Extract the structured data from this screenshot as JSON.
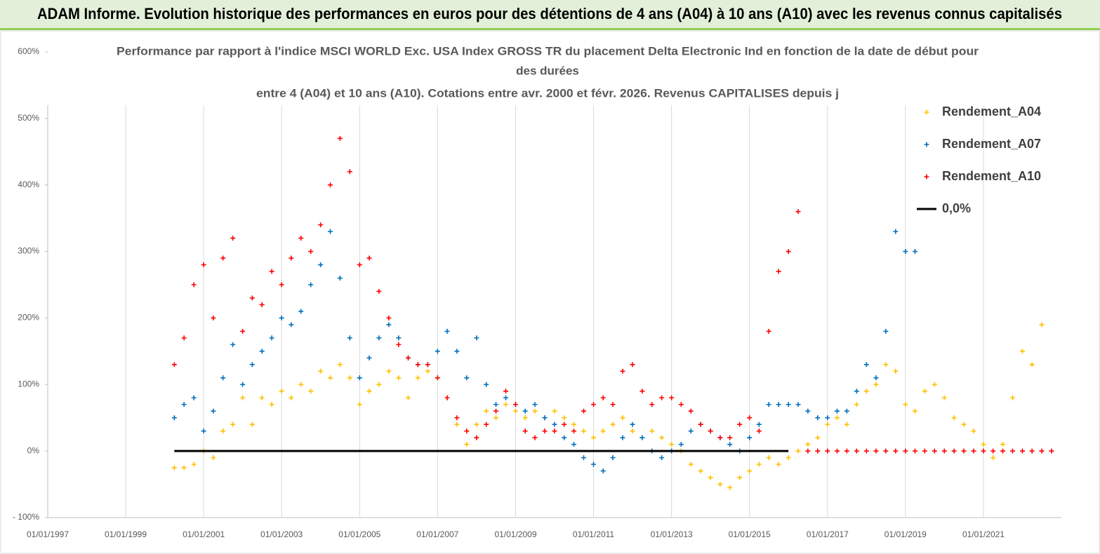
{
  "header": {
    "title": "ADAM Informe. Evolution historique des performances en euros pour des détentions de 4 ans (A04) à 10 ans (A10) avec les revenus connus capitalisés"
  },
  "chart_data": {
    "type": "scatter",
    "title": [
      "Performance par rapport à l'indice MSCI WORLD Exc. USA Index GROSS TR  du placement Delta Electronic Ind  en fonction de la date de début pour",
      "des durées",
      "entre 4 (A04) et 10 ans (A10). Cotations entre avr. 2000 et févr. 2026. Revenus CAPITALISES depuis j"
    ],
    "xlim": [
      "1997-01-01",
      "2023-01-01"
    ],
    "xticks": [
      {
        "value": "1997-01-01",
        "label": "01/01/1997"
      },
      {
        "value": "1999-01-01",
        "label": "01/01/1999"
      },
      {
        "value": "2001-01-01",
        "label": "01/01/2001"
      },
      {
        "value": "2003-01-01",
        "label": "01/01/2003"
      },
      {
        "value": "2005-01-01",
        "label": "01/01/2005"
      },
      {
        "value": "2007-01-01",
        "label": "01/01/2007"
      },
      {
        "value": "2009-01-01",
        "label": "01/01/2009"
      },
      {
        "value": "2011-01-01",
        "label": "01/01/2011"
      },
      {
        "value": "2013-01-01",
        "label": "01/01/2013"
      },
      {
        "value": "2015-01-01",
        "label": "01/01/2015"
      },
      {
        "value": "2017-01-01",
        "label": "01/01/2017"
      },
      {
        "value": "2019-01-01",
        "label": "01/01/2019"
      },
      {
        "value": "2021-01-01",
        "label": "01/01/2021"
      }
    ],
    "ylim": [
      -100,
      600
    ],
    "yticks": [
      {
        "value": -100,
        "label": "- 100%"
      },
      {
        "value": 0,
        "label": "0%"
      },
      {
        "value": 100,
        "label": "100%"
      },
      {
        "value": 200,
        "label": "200%"
      },
      {
        "value": 300,
        "label": "300%"
      },
      {
        "value": 400,
        "label": "400%"
      },
      {
        "value": 500,
        "label": "500%"
      },
      {
        "value": 600,
        "label": "600%"
      }
    ],
    "grid": "x",
    "series": [
      {
        "name": "Rendement_A04",
        "color": "#ffc000",
        "x": [
          "2000-04-01",
          "2000-07-01",
          "2000-10-01",
          "2001-01-01",
          "2001-04-01",
          "2001-07-01",
          "2001-10-01",
          "2002-01-01",
          "2002-04-01",
          "2002-07-01",
          "2002-10-01",
          "2003-01-01",
          "2003-04-01",
          "2003-07-01",
          "2003-10-01",
          "2004-01-01",
          "2004-04-01",
          "2004-07-01",
          "2004-10-01",
          "2005-01-01",
          "2005-04-01",
          "2005-07-01",
          "2005-10-01",
          "2006-01-01",
          "2006-04-01",
          "2006-07-01",
          "2006-10-01",
          "2007-01-01",
          "2007-04-01",
          "2007-07-01",
          "2007-10-01",
          "2008-01-01",
          "2008-04-01",
          "2008-07-01",
          "2008-10-01",
          "2009-01-01",
          "2009-04-01",
          "2009-07-01",
          "2009-10-01",
          "2010-01-01",
          "2010-04-01",
          "2010-07-01",
          "2010-10-01",
          "2011-01-01",
          "2011-04-01",
          "2011-07-01",
          "2011-10-01",
          "2012-01-01",
          "2012-04-01",
          "2012-07-01",
          "2012-10-01",
          "2013-01-01",
          "2013-04-01",
          "2013-07-01",
          "2013-10-01",
          "2014-01-01",
          "2014-04-01",
          "2014-07-01",
          "2014-10-01",
          "2015-01-01",
          "2015-04-01",
          "2015-07-01",
          "2015-10-01",
          "2016-01-01",
          "2016-04-01",
          "2016-07-01",
          "2016-10-01",
          "2017-01-01",
          "2017-04-01",
          "2017-07-01",
          "2017-10-01",
          "2018-01-01",
          "2018-04-01",
          "2018-07-01",
          "2018-10-01",
          "2019-01-01",
          "2019-04-01",
          "2019-07-01",
          "2019-10-01",
          "2020-01-01",
          "2020-04-01",
          "2020-07-01",
          "2020-10-01",
          "2021-01-01",
          "2021-04-01",
          "2021-07-01",
          "2021-10-01",
          "2022-01-01",
          "2022-04-01",
          "2022-07-01"
        ],
        "values": [
          -25,
          -25,
          -20,
          0,
          -10,
          30,
          40,
          80,
          40,
          80,
          70,
          90,
          80,
          100,
          90,
          120,
          110,
          130,
          110,
          70,
          90,
          100,
          120,
          110,
          80,
          110,
          120,
          110,
          80,
          40,
          10,
          40,
          60,
          50,
          70,
          60,
          50,
          60,
          50,
          60,
          50,
          40,
          30,
          20,
          30,
          40,
          50,
          30,
          20,
          30,
          20,
          10,
          0,
          -20,
          -30,
          -40,
          -50,
          -55,
          -40,
          -30,
          -20,
          -10,
          -20,
          -10,
          0,
          10,
          20,
          40,
          50,
          40,
          70,
          90,
          100,
          130,
          120,
          70,
          60,
          90,
          100,
          80,
          50,
          40,
          30,
          10,
          -10,
          10,
          80,
          150,
          130,
          190
        ]
      },
      {
        "name": "Rendement_A07",
        "color": "#0070c0",
        "x": [
          "2000-04-01",
          "2000-07-01",
          "2000-10-01",
          "2001-01-01",
          "2001-04-01",
          "2001-07-01",
          "2001-10-01",
          "2002-01-01",
          "2002-04-01",
          "2002-07-01",
          "2002-10-01",
          "2003-01-01",
          "2003-04-01",
          "2003-07-01",
          "2003-10-01",
          "2004-01-01",
          "2004-04-01",
          "2004-07-01",
          "2004-10-01",
          "2005-01-01",
          "2005-04-01",
          "2005-07-01",
          "2005-10-01",
          "2006-01-01",
          "2006-04-01",
          "2006-07-01",
          "2006-10-01",
          "2007-01-01",
          "2007-04-01",
          "2007-07-01",
          "2007-10-01",
          "2008-01-01",
          "2008-04-01",
          "2008-07-01",
          "2008-10-01",
          "2009-01-01",
          "2009-04-01",
          "2009-07-01",
          "2009-10-01",
          "2010-01-01",
          "2010-04-01",
          "2010-07-01",
          "2010-10-01",
          "2011-01-01",
          "2011-04-01",
          "2011-07-01",
          "2011-10-01",
          "2012-01-01",
          "2012-04-01",
          "2012-07-01",
          "2012-10-01",
          "2013-01-01",
          "2013-04-01",
          "2013-07-01",
          "2013-10-01",
          "2014-01-01",
          "2014-04-01",
          "2014-07-01",
          "2014-10-01",
          "2015-01-01",
          "2015-04-01",
          "2015-07-01",
          "2015-10-01",
          "2016-01-01",
          "2016-04-01",
          "2016-07-01",
          "2016-10-01",
          "2017-01-01",
          "2017-04-01",
          "2017-07-01",
          "2017-10-01",
          "2018-01-01",
          "2018-04-01",
          "2018-07-01",
          "2018-10-01",
          "2019-01-01",
          "2019-04-01"
        ],
        "values": [
          50,
          70,
          80,
          30,
          60,
          110,
          160,
          100,
          130,
          150,
          170,
          200,
          190,
          210,
          250,
          280,
          330,
          260,
          170,
          110,
          140,
          170,
          190,
          170,
          140,
          130,
          130,
          150,
          180,
          150,
          110,
          170,
          100,
          70,
          80,
          70,
          60,
          70,
          50,
          40,
          20,
          10,
          -10,
          -20,
          -30,
          -10,
          20,
          40,
          20,
          0,
          -10,
          0,
          10,
          30,
          40,
          30,
          20,
          10,
          0,
          20,
          40,
          70,
          70,
          70,
          70,
          60,
          50,
          50,
          60,
          60,
          90,
          130,
          110,
          180,
          330,
          300,
          300
        ]
      },
      {
        "name": "Rendement_A10",
        "color": "#ff0000",
        "x": [
          "2000-04-01",
          "2000-07-01",
          "2000-10-01",
          "2001-01-01",
          "2001-04-01",
          "2001-07-01",
          "2001-10-01",
          "2002-01-01",
          "2002-04-01",
          "2002-07-01",
          "2002-10-01",
          "2003-01-01",
          "2003-04-01",
          "2003-07-01",
          "2003-10-01",
          "2004-01-01",
          "2004-04-01",
          "2004-07-01",
          "2004-10-01",
          "2005-01-01",
          "2005-04-01",
          "2005-07-01",
          "2005-10-01",
          "2006-01-01",
          "2006-04-01",
          "2006-07-01",
          "2006-10-01",
          "2007-01-01",
          "2007-04-01",
          "2007-07-01",
          "2007-10-01",
          "2008-01-01",
          "2008-04-01",
          "2008-07-01",
          "2008-10-01",
          "2009-01-01",
          "2009-04-01",
          "2009-07-01",
          "2009-10-01",
          "2010-01-01",
          "2010-04-01",
          "2010-07-01",
          "2010-10-01",
          "2011-01-01",
          "2011-04-01",
          "2011-07-01",
          "2011-10-01",
          "2012-01-01",
          "2012-04-01",
          "2012-07-01",
          "2012-10-01",
          "2013-01-01",
          "2013-04-01",
          "2013-07-01",
          "2013-10-01",
          "2014-01-01",
          "2014-04-01",
          "2014-07-01",
          "2014-10-01",
          "2015-01-01",
          "2015-04-01",
          "2015-07-01",
          "2015-10-01",
          "2016-01-01",
          "2016-04-01",
          "2016-07-01",
          "2016-10-01",
          "2017-01-01",
          "2017-04-01",
          "2017-07-01",
          "2017-10-01",
          "2018-01-01",
          "2018-04-01",
          "2018-07-01",
          "2018-10-01",
          "2019-01-01",
          "2019-04-01",
          "2019-07-01",
          "2019-10-01",
          "2020-01-01",
          "2020-04-01",
          "2020-07-01",
          "2020-10-01",
          "2021-01-01",
          "2021-04-01",
          "2021-07-01",
          "2021-10-01",
          "2022-01-01",
          "2022-04-01",
          "2022-07-01",
          "2022-10-01"
        ],
        "values": [
          130,
          170,
          250,
          280,
          200,
          290,
          320,
          180,
          230,
          220,
          270,
          250,
          290,
          320,
          300,
          340,
          400,
          470,
          420,
          280,
          290,
          240,
          200,
          160,
          140,
          130,
          130,
          110,
          80,
          50,
          30,
          20,
          40,
          60,
          90,
          70,
          30,
          20,
          30,
          30,
          40,
          30,
          60,
          70,
          80,
          70,
          120,
          130,
          90,
          70,
          80,
          80,
          70,
          60,
          40,
          30,
          20,
          20,
          40,
          50,
          30,
          180,
          270,
          300,
          360,
          0,
          0,
          0,
          0,
          0,
          0,
          0,
          0,
          0,
          0,
          0,
          0,
          0,
          0,
          0,
          0,
          0,
          0,
          0,
          0,
          0,
          0,
          0,
          0,
          0,
          0
        ]
      },
      {
        "name": "0,0%",
        "color": "#000000",
        "line": true,
        "x": [
          "2000-04-01",
          "2016-01-01"
        ],
        "values": [
          0,
          0
        ]
      }
    ]
  }
}
